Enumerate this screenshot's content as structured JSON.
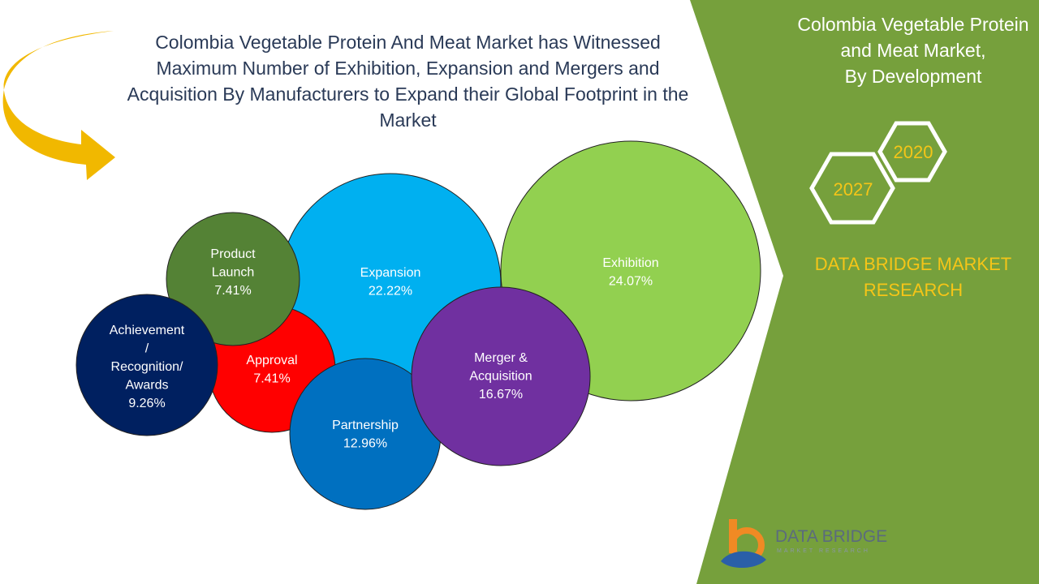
{
  "title": "Colombia Vegetable Protein And Meat Market has Witnessed Maximum Number of Exhibition, Expansion and Mergers and Acquisition By Manufacturers to Expand their Global Footprint in the Market",
  "side_panel": {
    "title": "Colombia Vegetable Protein\nand Meat Market,\nBy Development",
    "years": [
      "2020",
      "2027"
    ],
    "brand": "DATA BRIDGE MARKET\nRESEARCH"
  },
  "logo": {
    "text": "DATA BRIDGE",
    "subtext": "MARKET RESEARCH"
  },
  "colors": {
    "panel_green": "#76a03c",
    "accent_yellow": "#f5c518",
    "arrow": "#f1b800"
  },
  "chart_data": {
    "type": "bubble",
    "title": "",
    "unit": "%",
    "series": [
      {
        "label": "Exhibition",
        "value": 24.07,
        "color": "#92d050"
      },
      {
        "label": "Expansion",
        "value": 22.22,
        "color": "#00b0f0"
      },
      {
        "label": "Merger & Acquisition",
        "value": 16.67,
        "color": "#7030a0"
      },
      {
        "label": "Partnership",
        "value": 12.96,
        "color": "#0070c0"
      },
      {
        "label": "Achievement / Recognition/ Awards",
        "value": 9.26,
        "color": "#002060"
      },
      {
        "label": "Product Launch",
        "value": 7.41,
        "color": "#548235"
      },
      {
        "label": "Approval",
        "value": 7.41,
        "color": "#ff0000"
      }
    ]
  }
}
